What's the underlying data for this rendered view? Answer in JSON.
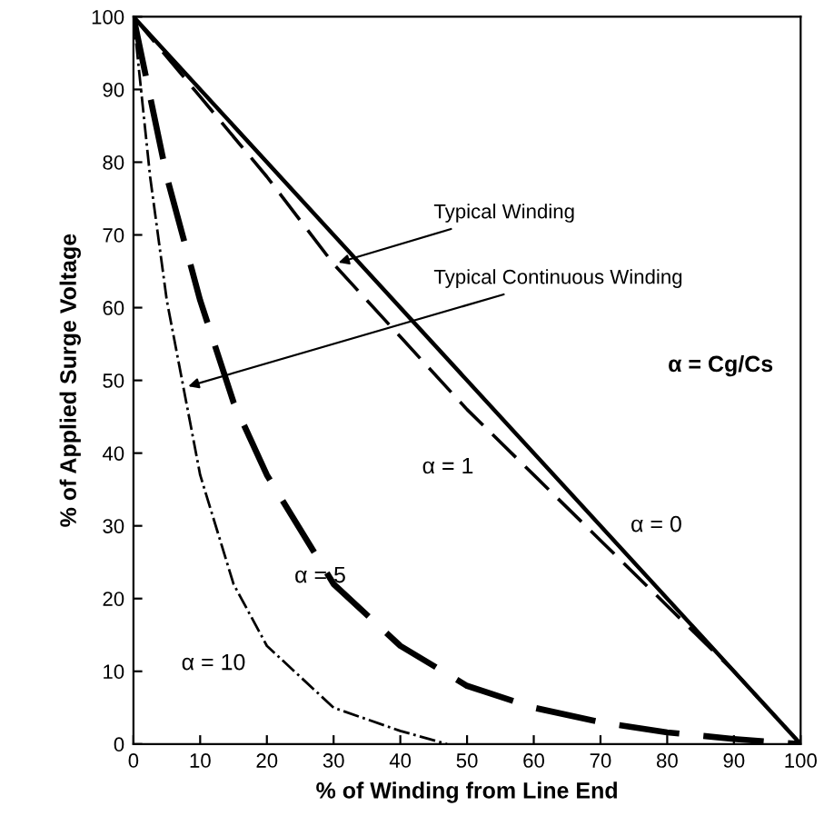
{
  "chart_data": {
    "type": "line",
    "xlabel": "% of Winding from Line End",
    "ylabel": "% of Applied Surge Voltage",
    "xlim": [
      0,
      100
    ],
    "ylim": [
      0,
      100
    ],
    "xticks": [
      0,
      10,
      20,
      30,
      40,
      50,
      60,
      70,
      80,
      90,
      100
    ],
    "yticks": [
      0,
      10,
      20,
      30,
      40,
      50,
      60,
      70,
      80,
      90,
      100
    ],
    "grid": false,
    "legend": false,
    "series": [
      {
        "name": "α = 0",
        "color": "#000000",
        "line_style": "solid",
        "x": [
          0,
          100
        ],
        "values": [
          100,
          0
        ]
      },
      {
        "name": "α = 1",
        "color": "#000000",
        "line_style": "dashed",
        "x": [
          0,
          10,
          20,
          30,
          40,
          50,
          60,
          70,
          80,
          90,
          100
        ],
        "values": [
          100,
          89,
          78,
          66,
          56,
          46,
          37,
          28,
          19,
          10,
          0
        ]
      },
      {
        "name": "α = 5",
        "color": "#000000",
        "line_style": "dashed",
        "x": [
          0,
          5,
          10,
          15,
          20,
          30,
          40,
          50,
          60,
          70,
          80,
          90,
          100
        ],
        "values": [
          100,
          78,
          61,
          47,
          37,
          22,
          13.5,
          8,
          5,
          3,
          1.6,
          0.7,
          0
        ]
      },
      {
        "name": "α = 10",
        "color": "#000000",
        "line_style": "dashdot",
        "x": [
          0,
          2.5,
          5,
          10,
          15,
          20,
          30,
          40,
          47
        ],
        "values": [
          100,
          78,
          61,
          37,
          22,
          13.5,
          5,
          1.8,
          0
        ]
      }
    ],
    "annotations": [
      "α = Cg/Cs",
      {
        "text": "Typical Winding",
        "x": 30,
        "y": 66
      },
      {
        "text": "Typical Continuous Winding",
        "x": 7.5,
        "y": 49
      }
    ]
  }
}
